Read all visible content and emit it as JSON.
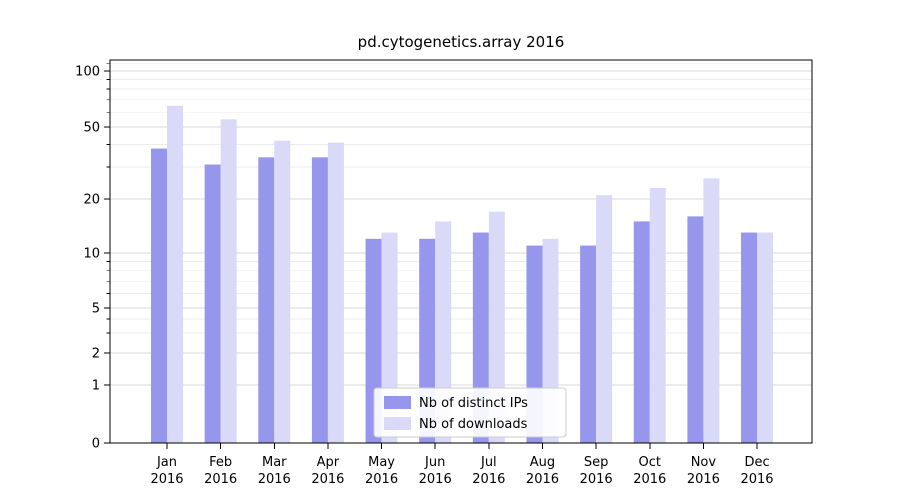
{
  "chart_data": {
    "type": "bar",
    "title": "pd.cytogenetics.array 2016",
    "categories": [
      "Jan",
      "Feb",
      "Mar",
      "Apr",
      "May",
      "Jun",
      "Jul",
      "Aug",
      "Sep",
      "Oct",
      "Nov",
      "Dec"
    ],
    "category_year": "2016",
    "series": [
      {
        "name": "Nb of distinct IPs",
        "color": "#9696ec",
        "values": [
          38,
          31,
          34,
          34,
          12,
          12,
          13,
          11,
          11,
          15,
          16,
          13
        ]
      },
      {
        "name": "Nb of downloads",
        "color": "#dadaf8",
        "values": [
          65,
          55,
          42,
          41,
          13,
          15,
          17,
          12,
          21,
          23,
          26,
          13
        ]
      }
    ],
    "yscale": "symlog",
    "yticks": [
      0,
      1,
      2,
      5,
      10,
      20,
      50,
      100
    ],
    "yticks_minor": [
      3,
      4,
      6,
      7,
      8,
      9,
      30,
      40,
      60,
      70,
      80,
      90,
      110
    ],
    "ylim": [
      0,
      115
    ],
    "xlabel": "",
    "ylabel": "",
    "grid": true,
    "legend_position": "lower center"
  },
  "colors": {
    "grid_major": "#d9d9d9",
    "grid_minor": "#ececec",
    "axis": "#000000",
    "legend_border": "#cccccc",
    "background": "#ffffff"
  }
}
